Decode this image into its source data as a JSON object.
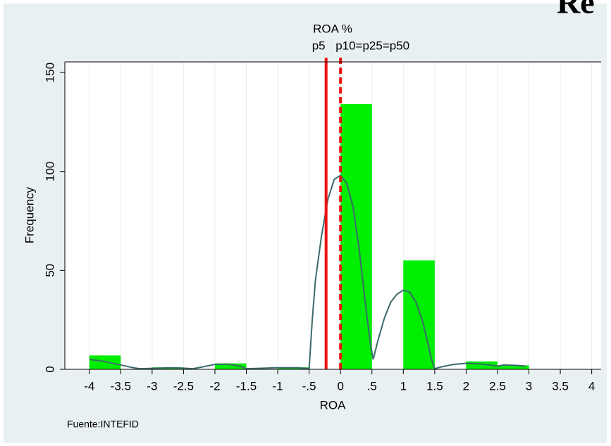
{
  "chart_data": {
    "type": "histogram",
    "heading": "Re",
    "title": "ROA %",
    "x_label": "ROA",
    "y_label": "Frequency",
    "note": "Fuente:INTEFID",
    "bins": [
      -4,
      -3.5,
      -3,
      -2.5,
      -2,
      -1.5,
      -1,
      -0.5,
      0,
      0.5,
      1,
      1.5,
      2,
      2.5,
      3
    ],
    "values": [
      7,
      0,
      1,
      0,
      3,
      0,
      1,
      0,
      134,
      0,
      55,
      0,
      4,
      2
    ],
    "color": "#00ee00",
    "density": {
      "color": "#3a6b6b",
      "x": [
        -4,
        -3.8,
        -3.5,
        -3.3,
        -3.2,
        -3,
        -2.7,
        -2.5,
        -2.35,
        -2.2,
        -2,
        -1.8,
        -1.6,
        -1.5,
        -1.3,
        -1,
        -0.7,
        -0.5,
        -0.48,
        -0.45,
        -0.4,
        -0.3,
        -0.2,
        -0.1,
        0,
        0.1,
        0.2,
        0.3,
        0.4,
        0.48,
        0.52,
        0.6,
        0.7,
        0.8,
        0.9,
        1,
        1.1,
        1.2,
        1.3,
        1.4,
        1.45,
        1.5,
        1.6,
        1.8,
        2,
        2.2,
        2.4,
        2.5,
        2.6,
        2.8,
        2.95
      ],
      "values": [
        5,
        4.2,
        2.2,
        0.8,
        0.3,
        0.5,
        0.8,
        0.6,
        0.3,
        1.2,
        2.5,
        2.6,
        1.6,
        0.3,
        0.5,
        0.8,
        0.8,
        0.4,
        10,
        25,
        45,
        68,
        86,
        96,
        98,
        94,
        82,
        60,
        32,
        12,
        5,
        15,
        26,
        34,
        38,
        40,
        39,
        34,
        25,
        12,
        5,
        0.3,
        1.2,
        2.5,
        3,
        2.8,
        2.1,
        1.6,
        2.2,
        2,
        1.6
      ]
    },
    "vlines": [
      {
        "value": -0.23,
        "label": "p5",
        "style": "solid"
      },
      {
        "value": 0,
        "label": "p10=p25=p50",
        "style": "dashed"
      }
    ],
    "vline_color": "#ee1111",
    "xlim": [
      -4.39,
      4.15
    ],
    "ylim": [
      0,
      150
    ],
    "xticks": [
      -4,
      -3.5,
      -3,
      -2.5,
      -2,
      -1.5,
      -1,
      {
        "value": -0.5,
        "label": "-.5"
      },
      0,
      {
        "value": 0.5,
        "label": ".5"
      },
      1,
      1.5,
      2,
      2.5,
      3,
      3.5,
      4
    ],
    "yticks": [
      0,
      50,
      100,
      150
    ],
    "xgrid": true
  }
}
